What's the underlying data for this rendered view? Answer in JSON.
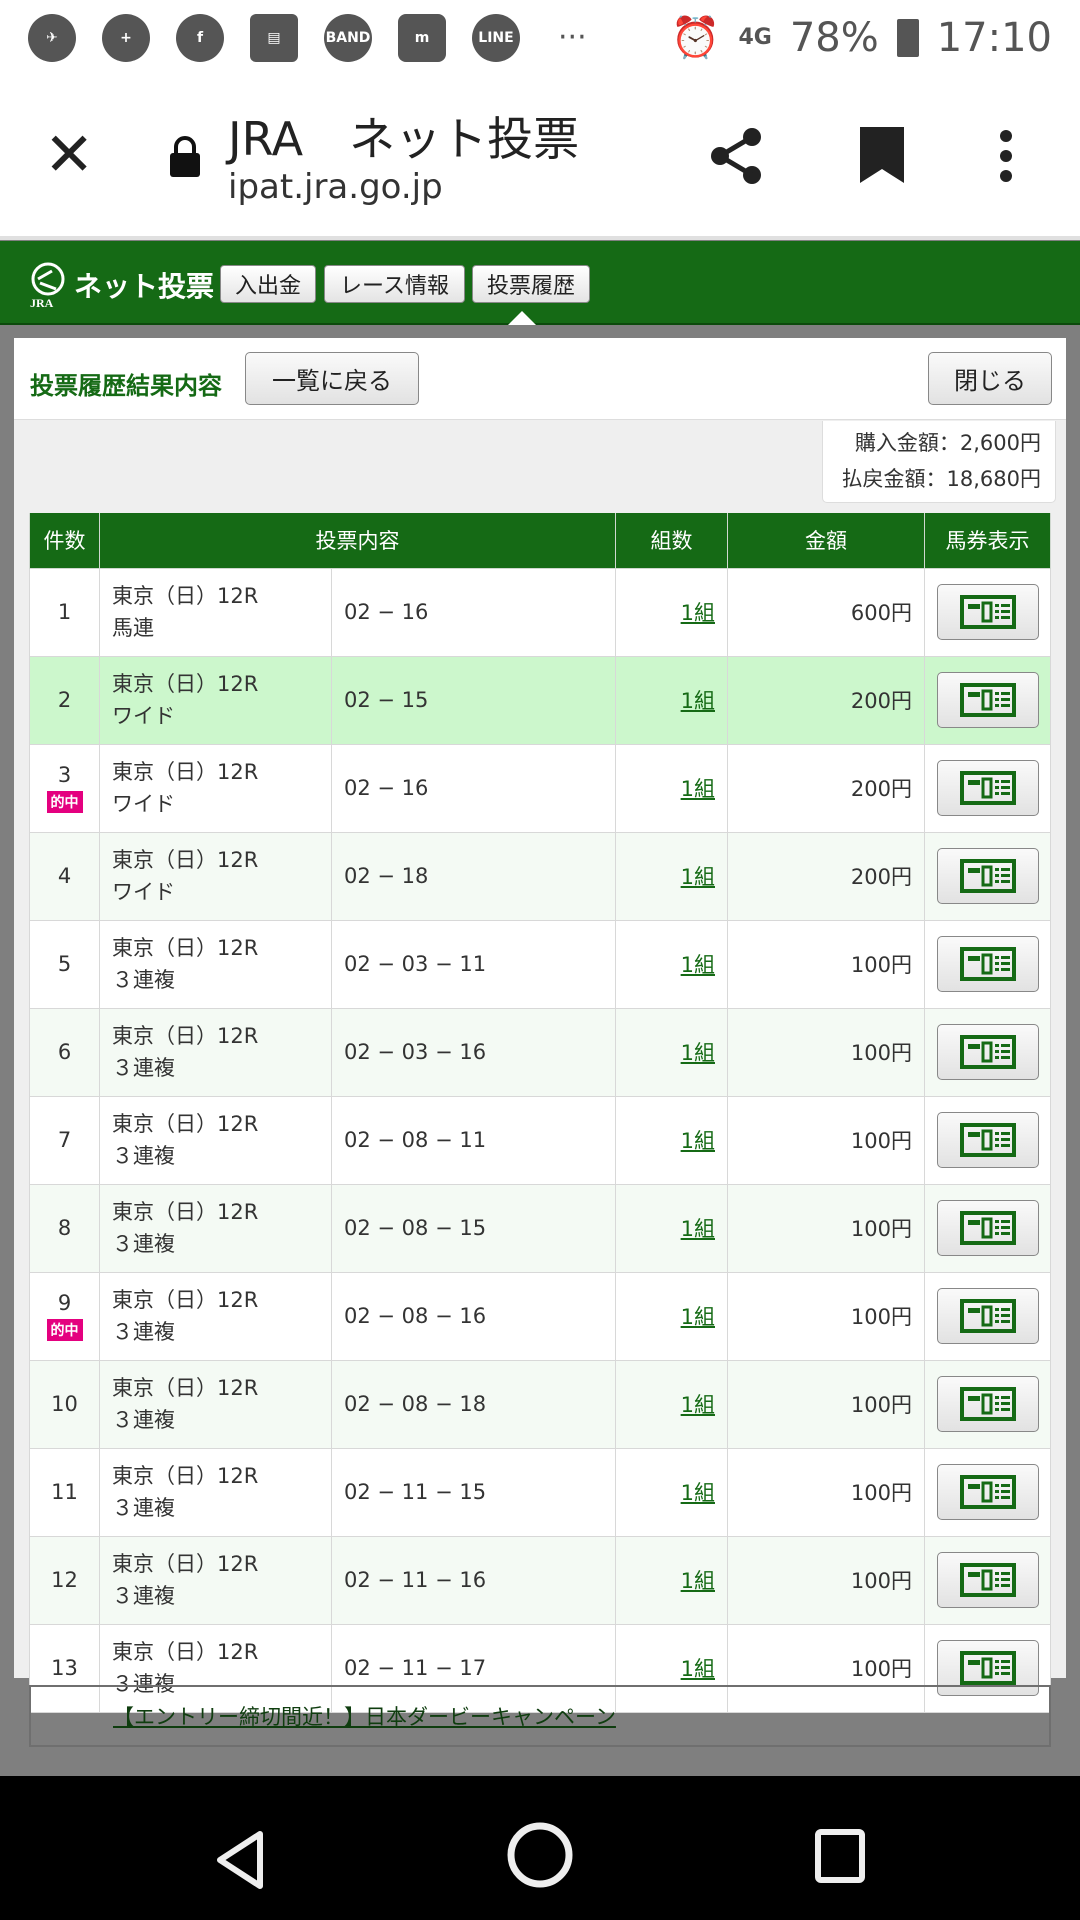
{
  "status_bar": {
    "app_icons": [
      "telegram-icon",
      "messenger-plus-icon",
      "facebook-icon",
      "app-icon",
      "BAND",
      "m",
      "LINE"
    ],
    "more": "···",
    "network": "4G",
    "battery": "78%",
    "time": "17:10"
  },
  "browser": {
    "title": "JRA　ネット投票",
    "url": "ipat.jra.go.jp"
  },
  "jra_header": {
    "logo_text": "ネット投票",
    "logo_sub": "JRA",
    "nav": [
      "入出金",
      "レース情報",
      "投票履歴"
    ]
  },
  "modal": {
    "title": "投票履歴結果内容",
    "back_label": "一覧に戻る",
    "close_label": "閉じる",
    "summary": {
      "purchase": "購入金額：2,600円",
      "payout": "払戻金額：18,680円"
    },
    "columns": [
      "件数",
      "投票内容",
      "組数",
      "金額",
      "馬券表示"
    ],
    "hit_label": "的中",
    "rows": [
      {
        "no": "1",
        "race": "東京（日）12R",
        "type": "馬連",
        "combo": "02 − 16",
        "count": "1組",
        "amount": "600円",
        "hit": false
      },
      {
        "no": "2",
        "race": "東京（日）12R",
        "type": "ワイド",
        "combo": "02 − 15",
        "count": "1組",
        "amount": "200円",
        "hit": false,
        "highlight": true
      },
      {
        "no": "3",
        "race": "東京（日）12R",
        "type": "ワイド",
        "combo": "02 − 16",
        "count": "1組",
        "amount": "200円",
        "hit": true
      },
      {
        "no": "4",
        "race": "東京（日）12R",
        "type": "ワイド",
        "combo": "02 − 18",
        "count": "1組",
        "amount": "200円",
        "hit": false
      },
      {
        "no": "5",
        "race": "東京（日）12R",
        "type": "３連複",
        "combo": "02 − 03 − 11",
        "count": "1組",
        "amount": "100円",
        "hit": false
      },
      {
        "no": "6",
        "race": "東京（日）12R",
        "type": "３連複",
        "combo": "02 − 03 − 16",
        "count": "1組",
        "amount": "100円",
        "hit": false
      },
      {
        "no": "7",
        "race": "東京（日）12R",
        "type": "３連複",
        "combo": "02 − 08 − 11",
        "count": "1組",
        "amount": "100円",
        "hit": false
      },
      {
        "no": "8",
        "race": "東京（日）12R",
        "type": "３連複",
        "combo": "02 − 08 − 15",
        "count": "1組",
        "amount": "100円",
        "hit": false
      },
      {
        "no": "9",
        "race": "東京（日）12R",
        "type": "３連複",
        "combo": "02 − 08 − 16",
        "count": "1組",
        "amount": "100円",
        "hit": true
      },
      {
        "no": "10",
        "race": "東京（日）12R",
        "type": "３連複",
        "combo": "02 − 08 − 18",
        "count": "1組",
        "amount": "100円",
        "hit": false
      },
      {
        "no": "11",
        "race": "東京（日）12R",
        "type": "３連複",
        "combo": "02 − 11 − 15",
        "count": "1組",
        "amount": "100円",
        "hit": false
      },
      {
        "no": "12",
        "race": "東京（日）12R",
        "type": "３連複",
        "combo": "02 − 11 − 16",
        "count": "1組",
        "amount": "100円",
        "hit": false
      },
      {
        "no": "13",
        "race": "東京（日）12R",
        "type": "３連複",
        "combo": "02 − 11 − 17",
        "count": "1組",
        "amount": "100円",
        "hit": false
      }
    ]
  },
  "campaign_link": "【エントリー締切間近！】日本ダービーキャンペーン",
  "colors": {
    "brand_green": "#156a15",
    "highlight_row": "#ccf7cc",
    "hit_badge": "#e4007f"
  }
}
